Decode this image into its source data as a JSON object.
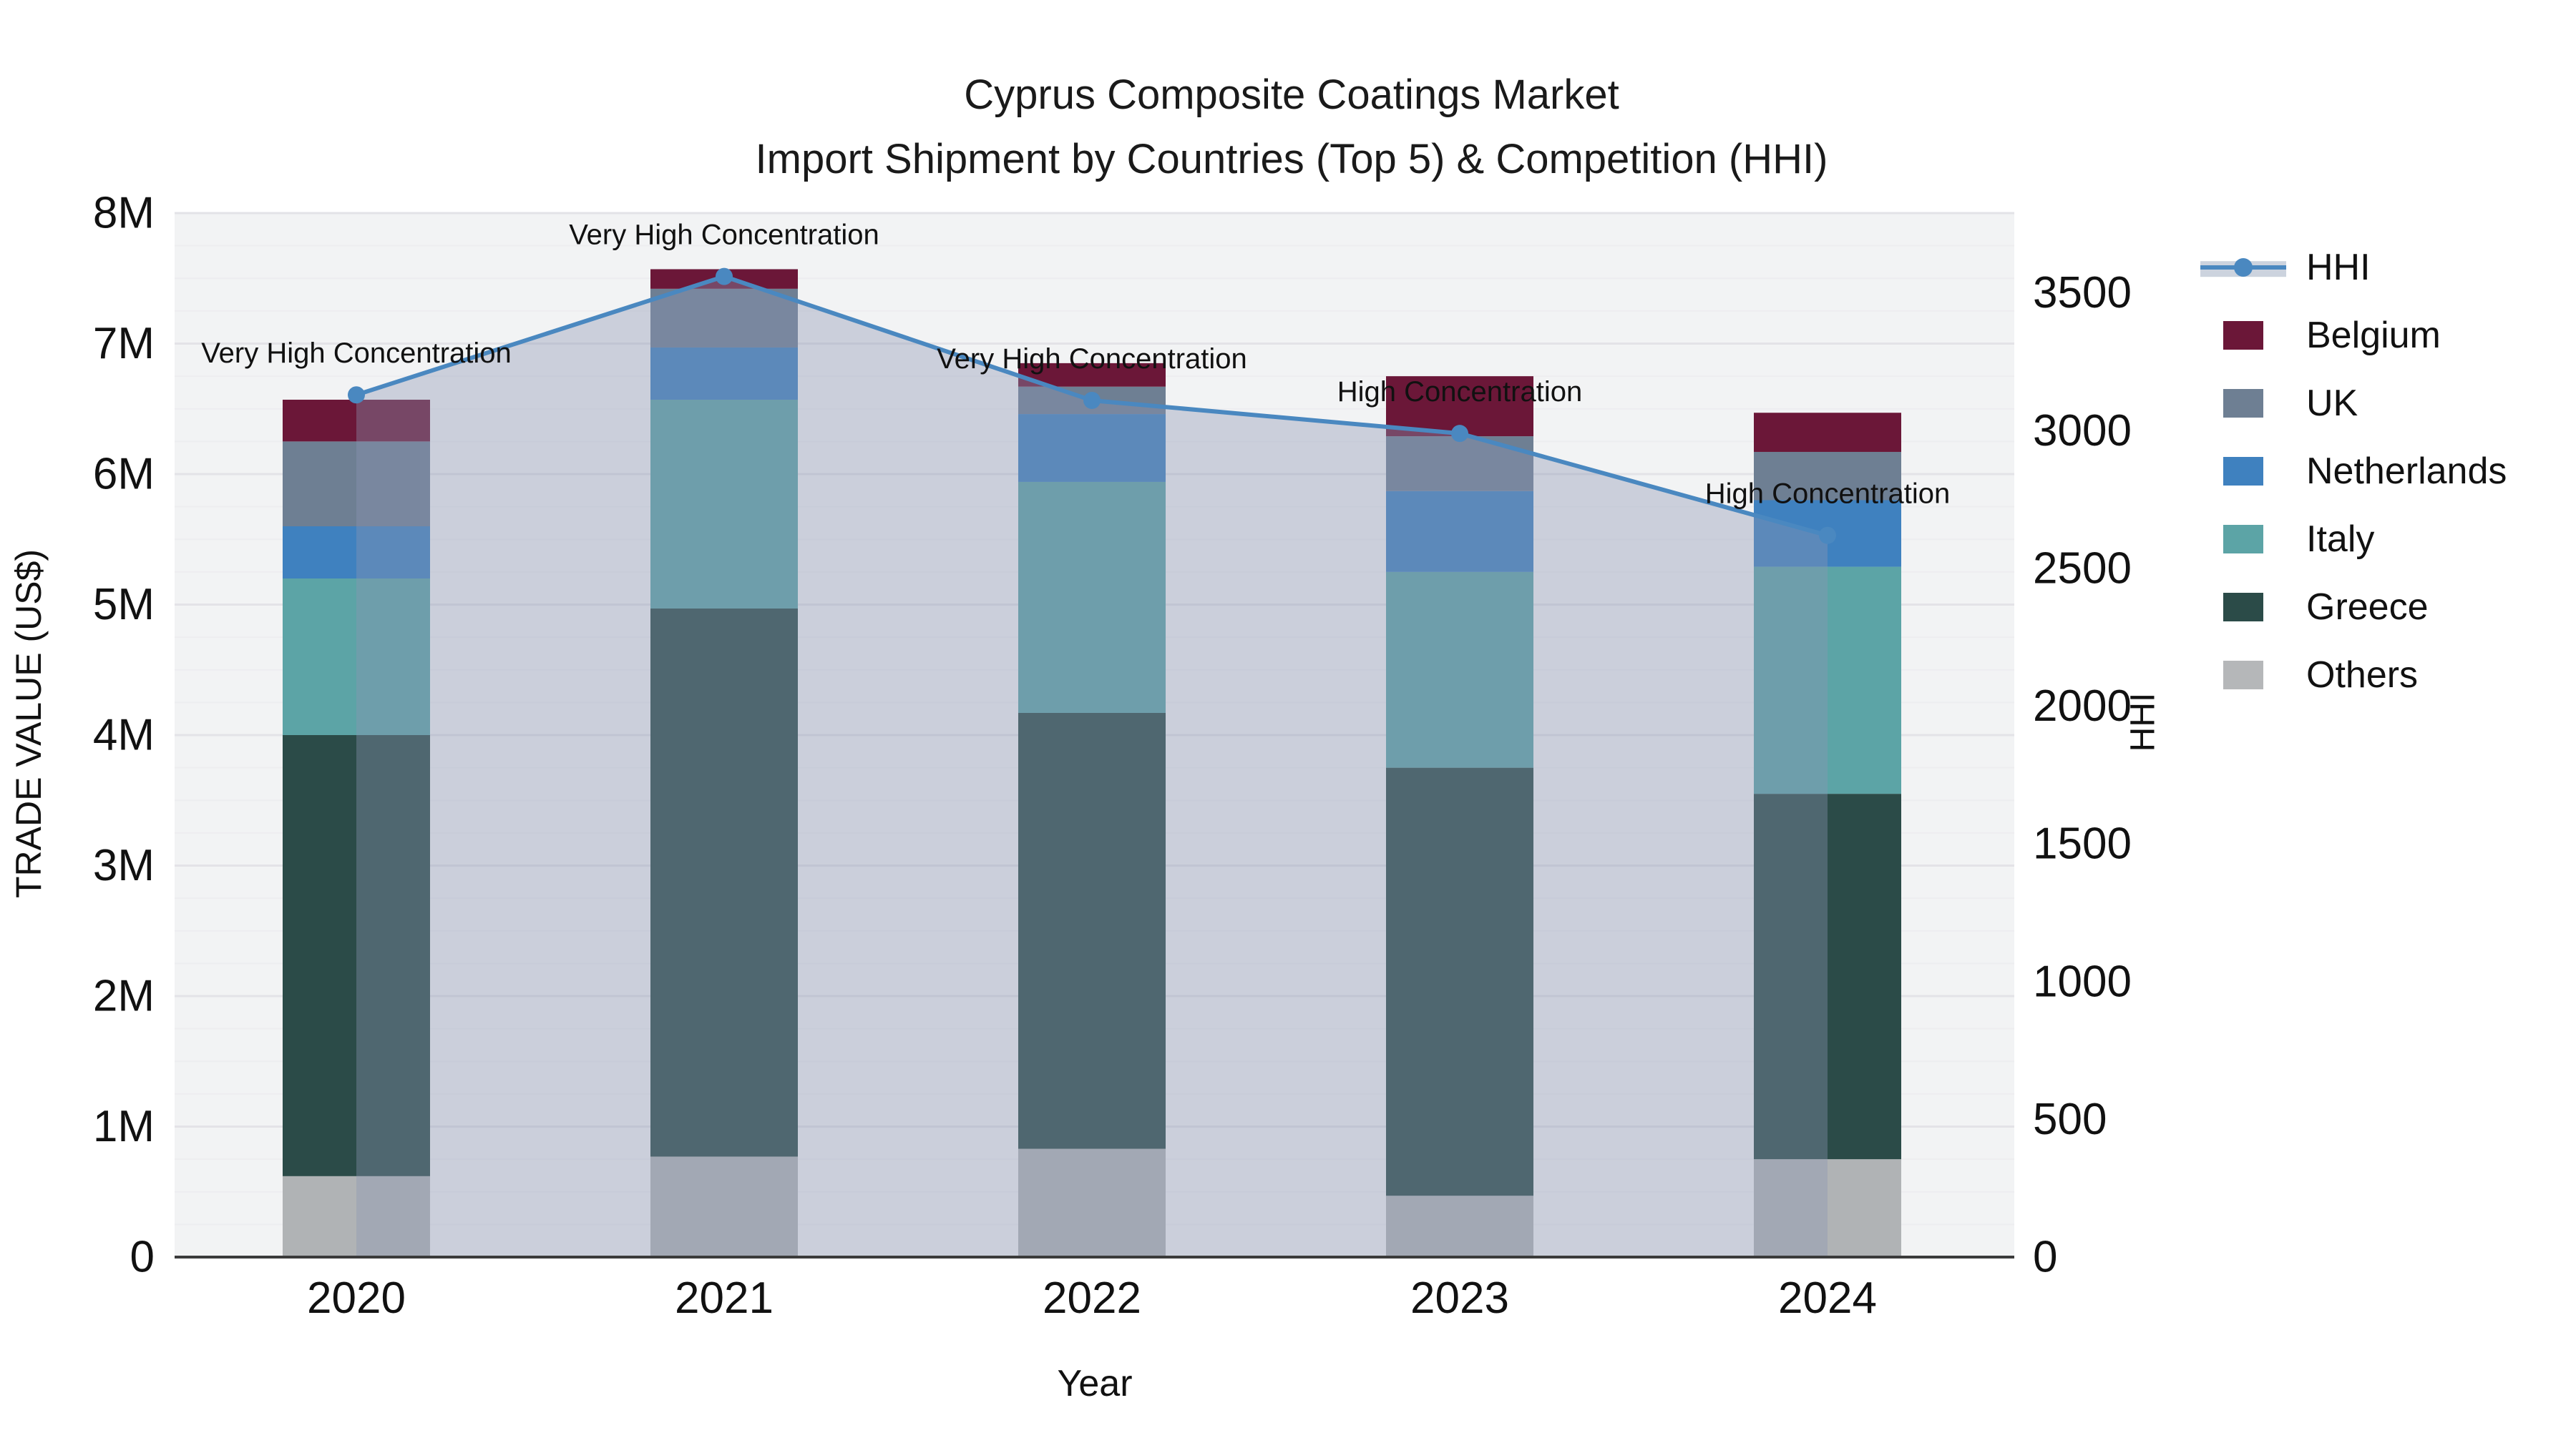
{
  "title": {
    "line1": "Cyprus Composite Coatings Market",
    "line2": "Import Shipment by Countries (Top 5) & Competition (HHI)"
  },
  "axes": {
    "x_label": "Year",
    "y_left_label": "TRADE VALUE (US$)",
    "y_right_label": "HHI",
    "y_left_ticks": [
      "0",
      "1M",
      "2M",
      "3M",
      "4M",
      "5M",
      "6M",
      "7M",
      "8M"
    ],
    "y_left_tick_values_m": [
      0,
      1,
      2,
      3,
      4,
      5,
      6,
      7,
      8
    ],
    "y_left_max_m": 8,
    "y_right_ticks": [
      "0",
      "500",
      "1000",
      "1500",
      "2000",
      "2500",
      "3000",
      "3500"
    ],
    "y_right_tick_values": [
      0,
      500,
      1000,
      1500,
      2000,
      2500,
      3000,
      3500
    ],
    "y_right_max": 3790,
    "grid_minor_step_m": 0.25,
    "grid_major_step_m": 1
  },
  "chart_data": {
    "type": "bar+line",
    "title": "Cyprus Composite Coatings Market — Import Shipment by Countries (Top 5) & Competition (HHI)",
    "categories": [
      "2020",
      "2021",
      "2022",
      "2023",
      "2024"
    ],
    "values_unit": "million US$",
    "stacked_bar_series_bottom_to_top": [
      {
        "name": "Others",
        "color": "#b0b3b5",
        "values": [
          0.62,
          0.77,
          0.83,
          0.47,
          0.75
        ]
      },
      {
        "name": "Greece",
        "color": "#2b4b48",
        "values": [
          3.38,
          4.2,
          3.34,
          3.28,
          2.8
        ]
      },
      {
        "name": "Italy",
        "color": "#5ca4a6",
        "values": [
          1.2,
          1.6,
          1.77,
          1.5,
          1.74
        ]
      },
      {
        "name": "Netherlands",
        "color": "#3f81bf",
        "values": [
          0.4,
          0.4,
          0.52,
          0.62,
          0.51
        ]
      },
      {
        "name": "UK",
        "color": "#6e7f93",
        "values": [
          0.65,
          0.45,
          0.21,
          0.42,
          0.37
        ]
      },
      {
        "name": "Belgium",
        "color": "#6b1738",
        "values": [
          0.32,
          0.15,
          0.18,
          0.46,
          0.3
        ]
      }
    ],
    "bar_totals_m": [
      6.57,
      7.57,
      6.85,
      6.75,
      6.47
    ],
    "hhi_line": {
      "name": "HHI",
      "color": "#4a88c0",
      "area_fill": "rgba(140,150,180,0.38)",
      "values": [
        3130,
        3560,
        3110,
        2990,
        2620
      ],
      "annotations": [
        "Very High Concentration",
        "Very High Concentration",
        "Very High Concentration",
        "High Concentration",
        "High Concentration"
      ]
    },
    "layout_hints": {
      "grid": "horizontal only",
      "legend_position": "right, outside plot",
      "left_ylim": [
        0,
        8000000
      ],
      "right_ylim": [
        0,
        3790
      ]
    }
  },
  "legend": {
    "items": [
      {
        "label": "HHI",
        "type": "line",
        "color": "#4a88c0",
        "band_color": "#ccd3de"
      },
      {
        "label": "Belgium",
        "type": "patch",
        "color": "#6b1738"
      },
      {
        "label": "UK",
        "type": "patch",
        "color": "#6e7f93"
      },
      {
        "label": "Netherlands",
        "type": "patch",
        "color": "#3f81bf"
      },
      {
        "label": "Italy",
        "type": "patch",
        "color": "#5ca4a6"
      },
      {
        "label": "Greece",
        "type": "patch",
        "color": "#2b4b48"
      },
      {
        "label": "Others",
        "type": "patch",
        "color": "#b5b7b9"
      }
    ]
  },
  "style": {
    "plot_bg": "#f2f3f4",
    "grid_major_color": "#e3e3e7",
    "grid_minor_color": "#ededf0",
    "spine_color": "#3b3b3b",
    "tick_label_color": "#111111",
    "annotation_color": "#111111"
  }
}
